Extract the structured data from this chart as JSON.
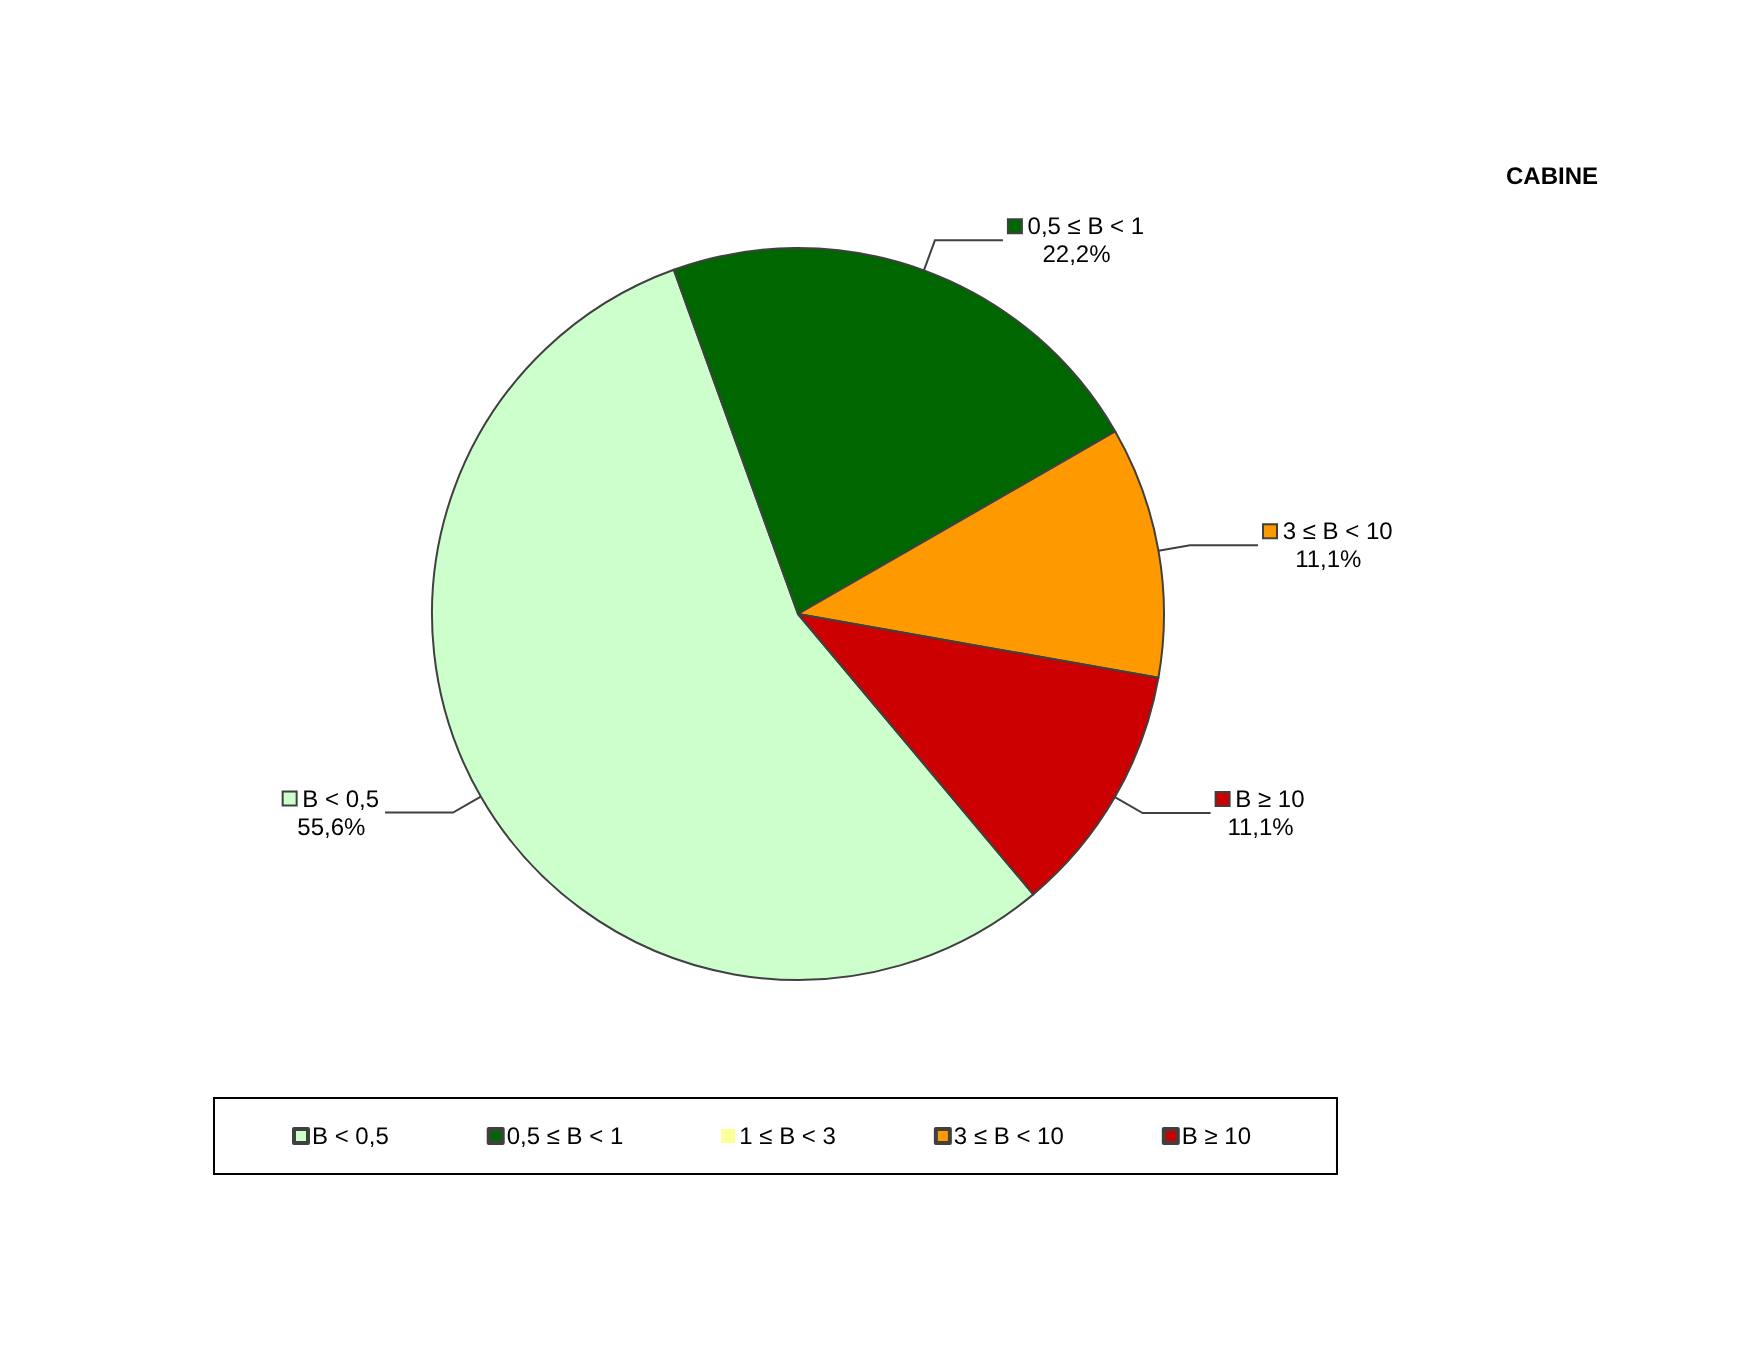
{
  "chart_data": {
    "type": "pie",
    "title": "CABINE",
    "categories": [
      "B < 0,5",
      "0,5 ≤ B < 1",
      "1 ≤ B < 3",
      "3 ≤ B < 10",
      "B ≥ 10"
    ],
    "values": [
      55.6,
      22.2,
      0,
      11.1,
      11.1
    ],
    "colors": [
      "#ccffcc",
      "#006600",
      "#ffff99",
      "#ff9900",
      "#cc0000"
    ],
    "value_labels": [
      "55,6%",
      "22,2%",
      null,
      "11,1%",
      "11,1%"
    ],
    "legend": "bottom"
  }
}
